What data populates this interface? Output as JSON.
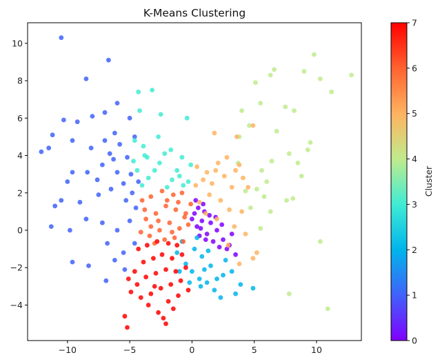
{
  "chart_data": {
    "type": "scatter",
    "title": "K-Means Clustering",
    "xlabel": "",
    "ylabel": "",
    "xlim": [
      -13.2,
      13.6
    ],
    "ylim": [
      -5.9,
      11.1
    ],
    "x_ticks": [
      -10,
      -5,
      0,
      5,
      10
    ],
    "y_ticks": [
      -4,
      -2,
      0,
      2,
      4,
      6,
      8,
      10
    ],
    "grid": false,
    "colormap": "rainbow",
    "colorbar": {
      "label": "Cluster",
      "range": [
        0,
        7
      ],
      "ticks": [
        0,
        1,
        2,
        3,
        4,
        5,
        6,
        7
      ],
      "stops": [
        "#8000ff",
        "#4062fa",
        "#00b5eb",
        "#40ecd4",
        "#c0eb8d",
        "#ffb360",
        "#ff6230",
        "#ff0000"
      ]
    },
    "series": [
      {
        "cluster": 0,
        "color": "#8000ff",
        "points": [
          [
            0.2,
            0.9
          ],
          [
            0.5,
            1.2
          ],
          [
            1.0,
            1.0
          ],
          [
            0.8,
            0.5
          ],
          [
            1.5,
            0.4
          ],
          [
            2.0,
            0.0
          ],
          [
            2.5,
            -0.5
          ],
          [
            3.0,
            -0.8
          ],
          [
            3.5,
            -1.3
          ],
          [
            2.2,
            -0.9
          ],
          [
            1.2,
            -0.2
          ],
          [
            0.4,
            0.2
          ],
          [
            0.0,
            0.6
          ],
          [
            0.6,
            -0.3
          ],
          [
            1.7,
            -0.6
          ],
          [
            2.8,
            -1.0
          ],
          [
            1.4,
            0.8
          ],
          [
            0.9,
            1.4
          ],
          [
            0.3,
            1.6
          ],
          [
            2.4,
            0.3
          ],
          [
            1.9,
            0.7
          ],
          [
            3.2,
            -0.2
          ],
          [
            0.7,
            0.1
          ],
          [
            1.1,
            -0.5
          ]
        ]
      },
      {
        "cluster": 1,
        "color": "#4062fa",
        "points": [
          [
            -10.5,
            10.3
          ],
          [
            -6.7,
            9.1
          ],
          [
            -8.5,
            8.1
          ],
          [
            -6.0,
            6.8
          ],
          [
            -7.0,
            6.3
          ],
          [
            -8.0,
            6.1
          ],
          [
            -9.2,
            5.8
          ],
          [
            -10.3,
            5.9
          ],
          [
            -11.2,
            5.1
          ],
          [
            -12.1,
            4.2
          ],
          [
            -11.5,
            4.4
          ],
          [
            -9.6,
            4.8
          ],
          [
            -8.1,
            4.4
          ],
          [
            -7.0,
            4.8
          ],
          [
            -6.2,
            5.2
          ],
          [
            -5.8,
            4.6
          ],
          [
            -5.0,
            6.0
          ],
          [
            -4.6,
            5.0
          ],
          [
            -5.2,
            3.9
          ],
          [
            -6.0,
            3.1
          ],
          [
            -7.2,
            3.5
          ],
          [
            -8.4,
            3.1
          ],
          [
            -9.6,
            3.1
          ],
          [
            -10.0,
            2.6
          ],
          [
            -10.5,
            1.6
          ],
          [
            -11.0,
            1.3
          ],
          [
            -9.0,
            1.5
          ],
          [
            -7.5,
            1.9
          ],
          [
            -6.5,
            2.2
          ],
          [
            -5.5,
            2.5
          ],
          [
            -4.8,
            2.0
          ],
          [
            -4.5,
            1.2
          ],
          [
            -5.0,
            0.5
          ],
          [
            -6.0,
            0.0
          ],
          [
            -7.2,
            0.4
          ],
          [
            -8.5,
            0.6
          ],
          [
            -9.8,
            0.0
          ],
          [
            -11.3,
            0.2
          ],
          [
            -9.6,
            -1.7
          ],
          [
            -8.3,
            -1.9
          ],
          [
            -6.8,
            -0.7
          ],
          [
            -6.2,
            -1.6
          ],
          [
            -5.4,
            -2.1
          ],
          [
            -6.9,
            -2.7
          ],
          [
            -5.5,
            -1.2
          ],
          [
            -4.6,
            -0.7
          ],
          [
            -4.9,
            3.0
          ],
          [
            -6.6,
            4.1
          ],
          [
            -7.6,
            2.7
          ],
          [
            -5.3,
            1.6
          ],
          [
            -4.3,
            2.6
          ],
          [
            -6.3,
            3.8
          ]
        ]
      },
      {
        "cluster": 2,
        "color": "#00b5eb",
        "points": [
          [
            -0.8,
            -0.6
          ],
          [
            -1.2,
            -1.2
          ],
          [
            -0.5,
            -1.8
          ],
          [
            0.0,
            -2.2
          ],
          [
            0.6,
            -2.6
          ],
          [
            1.2,
            -2.8
          ],
          [
            1.8,
            -3.2
          ],
          [
            2.3,
            -3.6
          ],
          [
            3.5,
            -3.4
          ],
          [
            4.9,
            -3.1
          ],
          [
            0.2,
            -1.0
          ],
          [
            0.8,
            -1.4
          ],
          [
            1.5,
            -1.9
          ],
          [
            2.5,
            -2.4
          ],
          [
            3.2,
            -2.2
          ],
          [
            -0.2,
            -2.8
          ],
          [
            0.4,
            -0.4
          ],
          [
            1.0,
            -2.1
          ],
          [
            2.0,
            -2.6
          ],
          [
            -1.0,
            -2.2
          ],
          [
            0.7,
            -3.0
          ],
          [
            1.3,
            -1.1
          ],
          [
            2.7,
            -1.6
          ],
          [
            3.9,
            -2.9
          ]
        ]
      },
      {
        "cluster": 3,
        "color": "#40ecd4",
        "points": [
          [
            -4.3,
            7.4
          ],
          [
            -3.2,
            7.5
          ],
          [
            -4.2,
            6.4
          ],
          [
            -2.5,
            6.2
          ],
          [
            -0.4,
            6.0
          ],
          [
            -4.6,
            4.8
          ],
          [
            -3.8,
            4.0
          ],
          [
            -2.7,
            5.0
          ],
          [
            -1.7,
            4.3
          ],
          [
            -0.8,
            3.9
          ],
          [
            -0.1,
            3.5
          ],
          [
            -4.4,
            3.2
          ],
          [
            -3.5,
            2.8
          ],
          [
            -2.6,
            3.6
          ],
          [
            -1.6,
            2.7
          ],
          [
            -0.7,
            2.4
          ],
          [
            -3.9,
            4.5
          ],
          [
            -2.2,
            4.1
          ],
          [
            -1.2,
            3.2
          ],
          [
            -4.0,
            2.4
          ],
          [
            -3.0,
            3.2
          ],
          [
            -2.0,
            2.3
          ],
          [
            -1.0,
            2.9
          ],
          [
            -0.3,
            2.6
          ],
          [
            -4.7,
            3.7
          ],
          [
            -3.6,
            3.9
          ]
        ]
      },
      {
        "cluster": 4,
        "color": "#c0eb8d",
        "points": [
          [
            9.8,
            9.4
          ],
          [
            6.6,
            8.6
          ],
          [
            9.0,
            8.5
          ],
          [
            10.3,
            8.1
          ],
          [
            12.8,
            8.3
          ],
          [
            11.2,
            7.4
          ],
          [
            5.1,
            7.9
          ],
          [
            6.3,
            8.3
          ],
          [
            7.5,
            6.6
          ],
          [
            8.2,
            6.4
          ],
          [
            5.5,
            6.8
          ],
          [
            4.0,
            6.4
          ],
          [
            6.8,
            5.3
          ],
          [
            4.6,
            5.6
          ],
          [
            3.8,
            5.0
          ],
          [
            7.8,
            4.1
          ],
          [
            9.3,
            4.3
          ],
          [
            9.5,
            4.7
          ],
          [
            8.5,
            3.6
          ],
          [
            6.4,
            3.7
          ],
          [
            5.6,
            3.2
          ],
          [
            6.0,
            2.6
          ],
          [
            5.2,
            2.2
          ],
          [
            4.3,
            2.1
          ],
          [
            3.7,
            3.6
          ],
          [
            8.8,
            2.9
          ],
          [
            7.6,
            1.6
          ],
          [
            8.1,
            1.7
          ],
          [
            6.3,
            1.0
          ],
          [
            5.5,
            0.1
          ],
          [
            10.3,
            -0.6
          ],
          [
            10.9,
            -4.2
          ],
          [
            7.8,
            -3.4
          ],
          [
            4.7,
            1.2
          ],
          [
            5.8,
            1.8
          ]
        ]
      },
      {
        "cluster": 5,
        "color": "#ffb360",
        "points": [
          [
            1.8,
            5.2
          ],
          [
            3.6,
            5.0
          ],
          [
            4.9,
            5.6
          ],
          [
            3.8,
            3.5
          ],
          [
            2.8,
            3.9
          ],
          [
            1.9,
            3.2
          ],
          [
            0.9,
            2.7
          ],
          [
            0.3,
            2.4
          ],
          [
            0.6,
            1.5
          ],
          [
            1.4,
            1.9
          ],
          [
            2.3,
            1.6
          ],
          [
            3.2,
            2.3
          ],
          [
            4.1,
            2.8
          ],
          [
            4.0,
            1.0
          ],
          [
            3.4,
            0.2
          ],
          [
            4.3,
            -0.2
          ],
          [
            5.2,
            -1.2
          ],
          [
            4.9,
            -1.5
          ],
          [
            3.8,
            -1.8
          ],
          [
            2.9,
            -0.8
          ],
          [
            2.0,
            0.6
          ],
          [
            1.1,
            0.9
          ],
          [
            2.6,
            2.9
          ],
          [
            3.0,
            1.1
          ],
          [
            1.6,
            2.5
          ],
          [
            2.1,
            3.6
          ],
          [
            3.5,
            3.2
          ],
          [
            4.5,
            2.3
          ],
          [
            1.2,
            3.1
          ],
          [
            0.4,
            3.4
          ]
        ]
      },
      {
        "cluster": 6,
        "color": "#ff6230",
        "points": [
          [
            -4.0,
            1.6
          ],
          [
            -3.3,
            1.8
          ],
          [
            -2.4,
            2.1
          ],
          [
            -1.5,
            1.9
          ],
          [
            -0.8,
            2.0
          ],
          [
            -0.1,
            1.4
          ],
          [
            -0.6,
            0.7
          ],
          [
            -1.3,
            1.1
          ],
          [
            -2.1,
            1.3
          ],
          [
            -2.9,
            0.9
          ],
          [
            -3.7,
            0.6
          ],
          [
            -4.1,
            -0.1
          ],
          [
            -3.4,
            -0.3
          ],
          [
            -2.6,
            0.0
          ],
          [
            -1.8,
            0.4
          ],
          [
            -1.0,
            0.1
          ],
          [
            -0.3,
            0.3
          ],
          [
            -3.0,
            -0.7
          ],
          [
            -2.2,
            -0.5
          ],
          [
            -1.4,
            -0.4
          ],
          [
            -0.7,
            -0.6
          ],
          [
            -3.8,
            1.1
          ],
          [
            -2.0,
            1.6
          ],
          [
            -1.1,
            1.5
          ],
          [
            -2.7,
            0.5
          ],
          [
            -3.3,
            0.2
          ],
          [
            -1.6,
            -0.1
          ],
          [
            -0.5,
            0.9
          ]
        ]
      },
      {
        "cluster": 7,
        "color": "#ff0000",
        "points": [
          [
            -4.3,
            -1.0
          ],
          [
            -3.6,
            -0.8
          ],
          [
            -2.8,
            -0.6
          ],
          [
            -1.9,
            -0.7
          ],
          [
            -1.2,
            -0.8
          ],
          [
            -4.6,
            -2.2
          ],
          [
            -3.9,
            -1.7
          ],
          [
            -3.1,
            -1.5
          ],
          [
            -2.4,
            -1.3
          ],
          [
            -1.6,
            -1.5
          ],
          [
            -0.8,
            -1.3
          ],
          [
            -5.1,
            -2.6
          ],
          [
            -4.4,
            -2.9
          ],
          [
            -3.7,
            -2.5
          ],
          [
            -2.9,
            -2.3
          ],
          [
            -2.1,
            -2.1
          ],
          [
            -1.3,
            -2.2
          ],
          [
            -0.5,
            -2.0
          ],
          [
            -4.9,
            -3.3
          ],
          [
            -4.1,
            -3.6
          ],
          [
            -3.3,
            -3.4
          ],
          [
            -2.5,
            -3.1
          ],
          [
            -1.7,
            -2.9
          ],
          [
            -0.9,
            -2.7
          ],
          [
            -3.5,
            -4.0
          ],
          [
            -2.7,
            -4.4
          ],
          [
            -1.9,
            -3.8
          ],
          [
            -1.1,
            -3.5
          ],
          [
            -2.3,
            -4.7
          ],
          [
            -2.1,
            -5.0
          ],
          [
            -5.4,
            -4.6
          ],
          [
            -5.2,
            -5.2
          ],
          [
            -3.0,
            -3.0
          ],
          [
            -1.5,
            -4.2
          ],
          [
            -0.3,
            -3.2
          ]
        ]
      }
    ]
  }
}
